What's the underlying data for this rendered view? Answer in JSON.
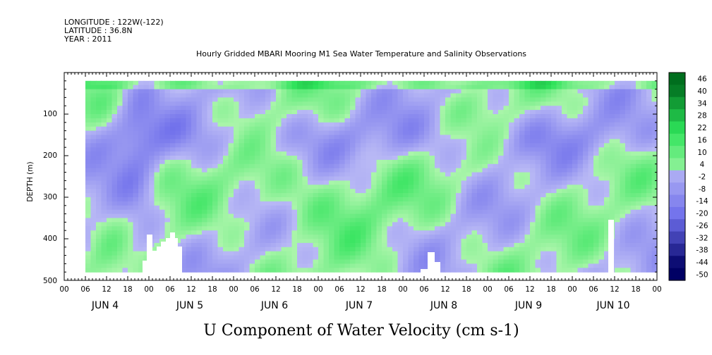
{
  "header": {
    "longitude": "LONGITUDE : 122W(-122)",
    "latitude": "LATITUDE : 36.8N",
    "year": "YEAR : 2011"
  },
  "chart_data": {
    "type": "heatmap",
    "title": "Hourly Gridded MBARI Mooring M1 Sea Water Temperature and Salinity Observations",
    "xlabel": "U Component of Water Velocity (cm s-1)",
    "ylabel": "DEPTH (m)",
    "x_range_hours": [
      0,
      168
    ],
    "data_start_hour": 6,
    "y_range_m": [
      0,
      500
    ],
    "y_ticks": [
      "100",
      "200",
      "300",
      "400",
      "500"
    ],
    "hour_tick_labels": [
      "00",
      "06",
      "12",
      "18",
      "00",
      "06",
      "12",
      "18",
      "00",
      "06",
      "12",
      "18",
      "00",
      "06",
      "12",
      "18",
      "00",
      "06",
      "12",
      "18",
      "00",
      "06",
      "12",
      "18",
      "00",
      "06",
      "12",
      "18",
      "00"
    ],
    "day_labels": [
      "JUN  4",
      "JUN  5",
      "JUN  6",
      "JUN  7",
      "JUN  8",
      "JUN  9",
      "JUN 10"
    ],
    "colorbar_levels": [
      46,
      40,
      34,
      28,
      22,
      16,
      10,
      4,
      -2,
      -8,
      -14,
      -20,
      -26,
      -32,
      -38,
      -44,
      -50
    ],
    "colorbar_labels": [
      "46",
      "40",
      "34",
      "28",
      "22",
      "16",
      "10",
      "4",
      "-2",
      "-8",
      "-14",
      "-20",
      "-26",
      "-32",
      "-38",
      "-44",
      "-50"
    ],
    "colors": {
      "positive_strong": "#007a1e",
      "positive_mid": "#2ee35a",
      "positive_light": "#a6f5a6",
      "negative_light": "#b4b4f2",
      "negative_mid": "#7c7ceb",
      "negative_strong": "#000060"
    }
  }
}
